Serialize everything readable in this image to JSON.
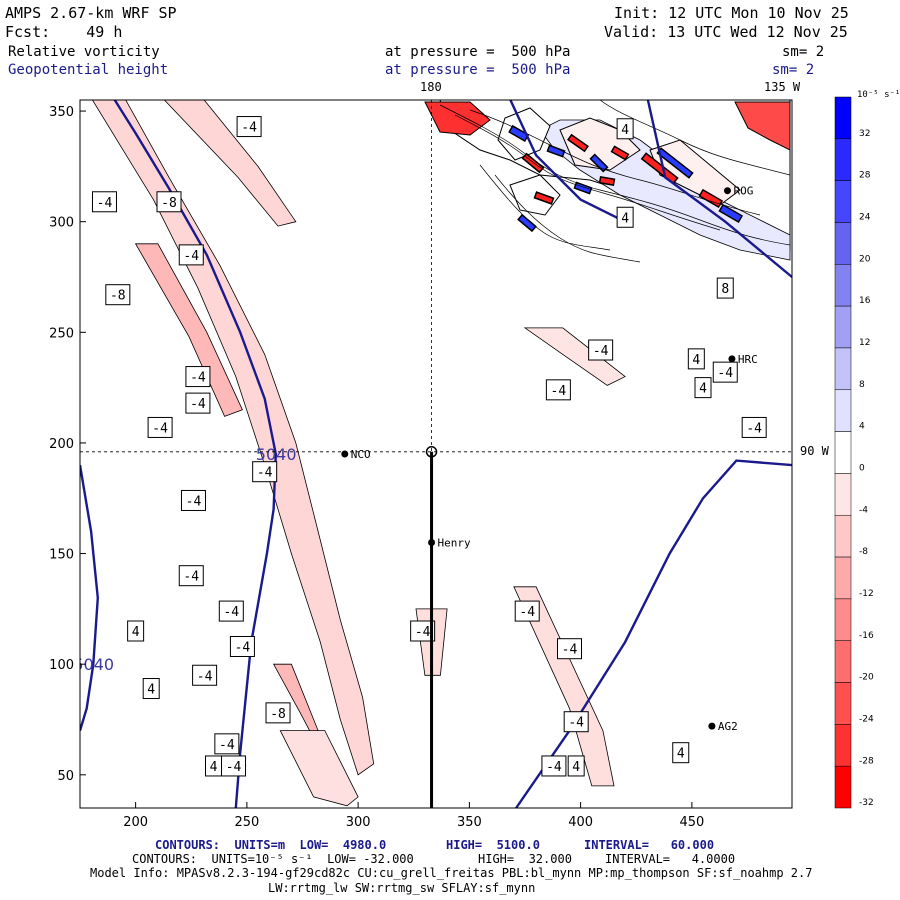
{
  "header": {
    "model": "AMPS 2.67-km WRF SP",
    "forecast": "Fcst:    49 h",
    "init": "Init: 12 UTC Mon 10 Nov 25",
    "valid": "Valid: 13 UTC Wed 12 Nov 25",
    "field1_name": "Relative vorticity",
    "field1_level": "at pressure =  500 hPa",
    "field1_smooth": "sm= 2",
    "field2_name": "Geopotential height",
    "field2_level": "at pressure =  500 hPa",
    "field2_smooth": "sm= 2"
  },
  "map_labels": {
    "meridian_top": "180",
    "meridian_top_right": "135 W",
    "meridian_right": "90 W"
  },
  "stations": [
    {
      "name": "NCO",
      "x": 294,
      "y": 195
    },
    {
      "name": "Henry",
      "x": 333,
      "y": 155
    },
    {
      "name": "HRC",
      "x": 468,
      "y": 238
    },
    {
      "name": "ROG",
      "x": 466,
      "y": 314
    },
    {
      "name": "AG2",
      "x": 459,
      "y": 72
    }
  ],
  "colorbar": {
    "unit_label": "10⁻⁵ s⁻¹",
    "ticks": [
      "32",
      "28",
      "24",
      "20",
      "16",
      "12",
      "8",
      "4",
      "0",
      "-4",
      "-8",
      "-12",
      "-16",
      "-20",
      "-24",
      "-28",
      "-32"
    ],
    "colors": [
      "#0000ff",
      "#2a2aff",
      "#4646ff",
      "#6464f0",
      "#8282f0",
      "#a0a0f5",
      "#c3c3fa",
      "#e1e1ff",
      "#ffffff",
      "#ffe6e6",
      "#ffc8c8",
      "#ffaaaa",
      "#ff8c8c",
      "#ff6e6e",
      "#ff5050",
      "#ff3232",
      "#ff0000"
    ]
  },
  "footer": {
    "line1_pre": "CONTOURS:  UNITS=m  LOW=  4980.0",
    "line1_high": "HIGH=  5100.0",
    "line1_interval": "INTERVAL=   60.000",
    "line2_pre": "CONTOURS:  UNITS=10⁻⁵ s⁻¹  LOW= -32.000",
    "line2_high": "HIGH=  32.000",
    "line2_interval": "INTERVAL=   4.0000",
    "line3": "Model Info: MPASv8.2.3-194-gf29cd82c CU:cu_grell_freitas PBL:bl_mynn MP:mp_thompson SF:sf_noahmp 2.7",
    "line4": "LW:rrtmg_lw SW:rrtmg_sw SFLAY:sf_mynn"
  },
  "chart_data": {
    "type": "contour-map",
    "title": "Relative vorticity and Geopotential height at 500 hPa",
    "xlim": [
      175,
      495
    ],
    "ylim": [
      35,
      355
    ],
    "xticks": [
      200,
      250,
      300,
      350,
      400,
      450
    ],
    "yticks": [
      50,
      100,
      150,
      200,
      250,
      300,
      350
    ],
    "cross_section_x": 333,
    "cross_section_y": 196,
    "height_contours": [
      {
        "label": "5040",
        "points": [
          [
            190,
            356
          ],
          [
            200,
            340
          ],
          [
            215,
            315
          ],
          [
            232,
            285
          ],
          [
            247,
            250
          ],
          [
            258,
            220
          ],
          [
            263,
            195
          ],
          [
            262,
            170
          ],
          [
            259,
            150
          ],
          [
            252,
            110
          ],
          [
            247,
            60
          ],
          [
            245,
            35
          ]
        ]
      },
      {
        "label": "5040",
        "points": [
          [
            175,
            190
          ],
          [
            180,
            160
          ],
          [
            183,
            130
          ],
          [
            181,
            100
          ],
          [
            178,
            80
          ],
          [
            175,
            70
          ]
        ]
      },
      {
        "label": "",
        "points": [
          [
            371,
            35
          ],
          [
            395,
            70
          ],
          [
            420,
            110
          ],
          [
            440,
            150
          ],
          [
            455,
            175
          ],
          [
            470,
            192
          ],
          [
            495,
            190
          ]
        ]
      },
      {
        "label": "",
        "points": [
          [
            430,
            356
          ],
          [
            438,
            320
          ],
          [
            465,
            300
          ],
          [
            495,
            275
          ]
        ]
      },
      {
        "label": "",
        "points": [
          [
            368,
            356
          ],
          [
            380,
            330
          ],
          [
            400,
            310
          ],
          [
            420,
            300
          ]
        ]
      }
    ],
    "vorticity_labels": [
      {
        "v": "-4",
        "x": 251,
        "y": 343
      },
      {
        "v": "-4",
        "x": 186,
        "y": 309
      },
      {
        "v": "-8",
        "x": 215,
        "y": 309
      },
      {
        "v": "-4",
        "x": 225,
        "y": 285
      },
      {
        "v": "-8",
        "x": 192,
        "y": 267
      },
      {
        "v": "-4",
        "x": 228,
        "y": 230
      },
      {
        "v": "-4",
        "x": 228,
        "y": 218
      },
      {
        "v": "-4",
        "x": 211,
        "y": 207
      },
      {
        "v": "-4",
        "x": 258,
        "y": 187
      },
      {
        "v": "-4",
        "x": 226,
        "y": 174
      },
      {
        "v": "-4",
        "x": 225,
        "y": 140
      },
      {
        "v": "-4",
        "x": 243,
        "y": 124
      },
      {
        "v": "-4",
        "x": 248,
        "y": 108
      },
      {
        "v": "-4",
        "x": 231,
        "y": 95
      },
      {
        "v": "-8",
        "x": 264,
        "y": 78
      },
      {
        "v": "-4",
        "x": 241,
        "y": 64
      },
      {
        "v": "-4",
        "x": 244,
        "y": 54
      },
      {
        "v": "4",
        "x": 235,
        "y": 54
      },
      {
        "v": "4",
        "x": 200,
        "y": 115
      },
      {
        "v": "4",
        "x": 207,
        "y": 89
      },
      {
        "v": "-4",
        "x": 329,
        "y": 115
      },
      {
        "v": "-4",
        "x": 376,
        "y": 124
      },
      {
        "v": "-4",
        "x": 395,
        "y": 107
      },
      {
        "v": "-4",
        "x": 398,
        "y": 74
      },
      {
        "v": "-4",
        "x": 388,
        "y": 54
      },
      {
        "v": "4",
        "x": 398,
        "y": 54
      },
      {
        "v": "4",
        "x": 445,
        "y": 60
      },
      {
        "v": "-4",
        "x": 409,
        "y": 242
      },
      {
        "v": "-4",
        "x": 390,
        "y": 224
      },
      {
        "v": "-4",
        "x": 465,
        "y": 232
      },
      {
        "v": "4",
        "x": 452,
        "y": 238
      },
      {
        "v": "4",
        "x": 455,
        "y": 225
      },
      {
        "v": "-4",
        "x": 478,
        "y": 207
      },
      {
        "v": "8",
        "x": 465,
        "y": 270
      },
      {
        "v": "4",
        "x": 420,
        "y": 302
      },
      {
        "v": "4",
        "x": 420,
        "y": 342
      }
    ],
    "vorticity_bands": [
      {
        "fill": "#ffd6d6",
        "points": [
          [
            180,
            356
          ],
          [
            195,
            356
          ],
          [
            215,
            320
          ],
          [
            238,
            280
          ],
          [
            258,
            240
          ],
          [
            272,
            200
          ],
          [
            282,
            160
          ],
          [
            292,
            120
          ],
          [
            302,
            85
          ],
          [
            307,
            55
          ],
          [
            300,
            50
          ],
          [
            292,
            75
          ],
          [
            283,
            110
          ],
          [
            270,
            150
          ],
          [
            258,
            190
          ],
          [
            245,
            230
          ],
          [
            228,
            270
          ],
          [
            208,
            310
          ]
        ]
      },
      {
        "fill": "#ffb8b8",
        "points": [
          [
            200,
            290
          ],
          [
            210,
            290
          ],
          [
            232,
            250
          ],
          [
            248,
            215
          ],
          [
            240,
            212
          ],
          [
            224,
            248
          ]
        ]
      },
      {
        "fill": "#ffb8b8",
        "points": [
          [
            262,
            100
          ],
          [
            270,
            100
          ],
          [
            282,
            70
          ],
          [
            292,
            55
          ],
          [
            286,
            55
          ],
          [
            274,
            78
          ]
        ]
      },
      {
        "fill": "#ffd6d6",
        "points": [
          [
            212,
            356
          ],
          [
            230,
            356
          ],
          [
            255,
            325
          ],
          [
            272,
            300
          ],
          [
            264,
            298
          ],
          [
            246,
            320
          ]
        ]
      },
      {
        "fill": "#ffe0e0",
        "points": [
          [
            265,
            70
          ],
          [
            285,
            70
          ],
          [
            300,
            40
          ],
          [
            295,
            36
          ],
          [
            280,
            40
          ]
        ]
      },
      {
        "fill": "#ffdede",
        "points": [
          [
            326,
            125
          ],
          [
            340,
            125
          ],
          [
            337,
            95
          ],
          [
            330,
            95
          ]
        ]
      },
      {
        "fill": "#ffdede",
        "points": [
          [
            370,
            135
          ],
          [
            380,
            135
          ],
          [
            410,
            70
          ],
          [
            415,
            45
          ],
          [
            405,
            45
          ],
          [
            395,
            80
          ]
        ]
      },
      {
        "fill": "#ffe4e4",
        "points": [
          [
            375,
            252
          ],
          [
            392,
            252
          ],
          [
            420,
            230
          ],
          [
            412,
            226
          ],
          [
            392,
            240
          ]
        ]
      }
    ]
  }
}
